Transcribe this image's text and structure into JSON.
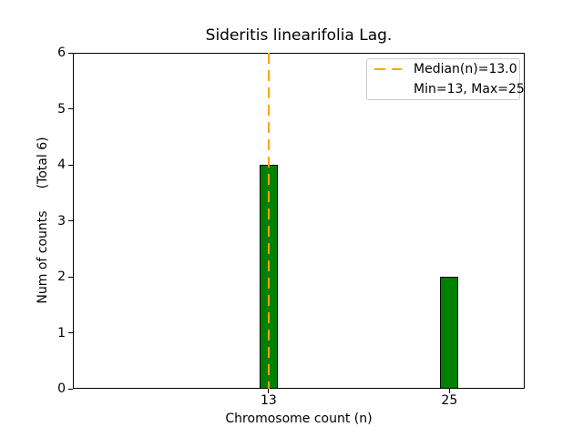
{
  "chart_data": {
    "type": "bar",
    "title": "Sideritis linearifolia Lag.",
    "xlabel": "Chromosome count (n)",
    "ylabel": "Num of counts",
    "ylabel_secondary": "(Total 6)",
    "categories": [
      13,
      25
    ],
    "values": [
      4,
      2
    ],
    "total": 6,
    "bar_color": "#008000",
    "bar_edge_color": "#000000",
    "bar_width_units": 1.2,
    "xlim": [
      0,
      30
    ],
    "ylim": [
      0,
      6
    ],
    "xticks": [
      "13",
      "25"
    ],
    "yticks": [
      "0",
      "1",
      "2",
      "3",
      "4",
      "5",
      "6"
    ],
    "grid": false,
    "median_line": {
      "x": 13.0,
      "color": "#FFA500",
      "style": "dashed"
    },
    "legend": {
      "position": "upper right",
      "entries": [
        {
          "label": "Median(n)=13.0",
          "marker": "orange-dashed-line"
        },
        {
          "label": "Min=13, Max=25",
          "marker": "none"
        }
      ]
    }
  }
}
